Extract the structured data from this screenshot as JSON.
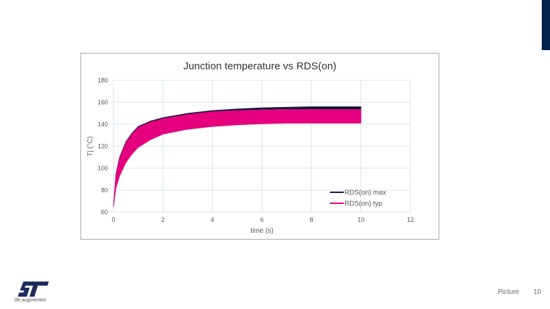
{
  "slide": {
    "footer_label": "Picture",
    "page_number": "10",
    "logo_tagline": "life.augmented",
    "accent_color": "#03234b"
  },
  "chart_data": {
    "type": "line",
    "title": "Junction temperature vs  RDS(on)",
    "xlabel": "time (s)",
    "ylabel": "Tj (°C)",
    "xlim": [
      0,
      12
    ],
    "ylim": [
      60,
      180
    ],
    "xticks": [
      0,
      2,
      4,
      6,
      8,
      10,
      12
    ],
    "yticks": [
      60,
      80,
      100,
      120,
      140,
      160,
      180
    ],
    "grid": true,
    "legend_position": "lower right inside",
    "x": [
      0,
      0.1,
      0.25,
      0.5,
      0.75,
      1,
      1.5,
      2,
      3,
      4,
      5,
      6,
      7,
      8,
      9,
      10
    ],
    "series": [
      {
        "name": "RDS(on) max",
        "color": "#101a3c",
        "upper": [
          65,
          95,
          110,
          124,
          132,
          138,
          143,
          146,
          150,
          152.5,
          154,
          155,
          155.5,
          156,
          156,
          156
        ],
        "lower": [
          65,
          93,
          108,
          122,
          130,
          136,
          141,
          144.5,
          148.5,
          151,
          152.5,
          153.5,
          154,
          154,
          154,
          154
        ]
      },
      {
        "name": "RDS(on) typ",
        "color": "#e5007e",
        "upper": [
          65,
          94,
          109,
          123,
          131,
          137,
          142,
          145,
          149,
          151.5,
          152.5,
          153,
          153.5,
          153.5,
          153.5,
          153.5
        ],
        "lower": [
          65,
          82,
          93,
          105,
          113,
          119,
          126,
          131,
          135.5,
          138,
          139.5,
          140.5,
          141,
          141,
          141,
          141
        ]
      }
    ]
  }
}
